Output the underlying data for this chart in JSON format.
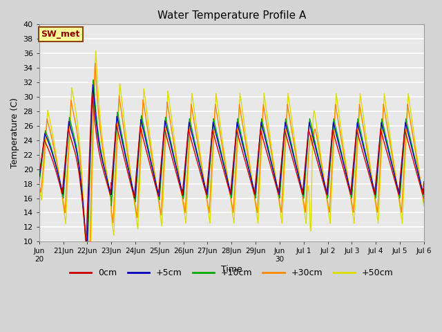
{
  "title": "Water Temperature Profile A",
  "xlabel": "Time",
  "ylabel": "Temperature (C)",
  "ylim": [
    10,
    40
  ],
  "legend_labels": [
    "0cm",
    "+5cm",
    "+10cm",
    "+30cm",
    "+50cm"
  ],
  "legend_colors": [
    "#cc0000",
    "#0000bb",
    "#00aa00",
    "#ff8800",
    "#dddd00"
  ],
  "annotation_text": "SW_met",
  "annotation_bg": "#ffff99",
  "annotation_border": "#8B4513",
  "annotation_text_color": "#8B0000",
  "fig_bg": "#d4d4d4",
  "plot_bg": "#e8e8e8",
  "tick_labels": [
    "Jun\n20",
    "21Jun",
    "22Jun",
    "23Jun",
    "24Jun",
    "25Jun",
    "26Jun",
    "27Jun",
    "28Jun",
    "29Jun",
    "Jun\n30",
    "Jul 1",
    "Jul 2",
    "Jul 3",
    "Jul 4",
    "Jul 5",
    "Jul 6"
  ]
}
